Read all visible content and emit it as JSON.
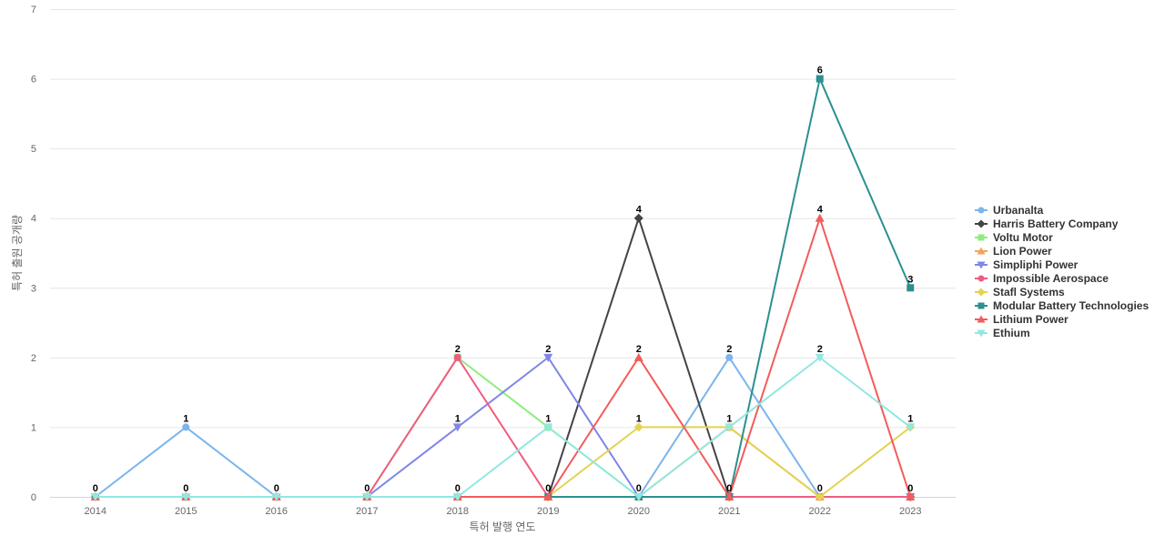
{
  "chart_data": {
    "type": "line",
    "title": "",
    "xlabel": "특허 발행 연도",
    "ylabel": "특허 출원 공개량",
    "categories": [
      "2014",
      "2015",
      "2016",
      "2017",
      "2018",
      "2019",
      "2020",
      "2021",
      "2022",
      "2023"
    ],
    "yticks": [
      "0",
      "1",
      "2",
      "3",
      "4",
      "5",
      "6",
      "7"
    ],
    "ylim": [
      0,
      7
    ],
    "grid": true,
    "legend_position": "right",
    "series": [
      {
        "name": "Urbanalta",
        "color": "#7cb5ec",
        "marker": "circle",
        "values": [
          0,
          1,
          0,
          0,
          0,
          0,
          0,
          2,
          0,
          0
        ]
      },
      {
        "name": "Harris Battery Company",
        "color": "#434348",
        "marker": "diamond",
        "values": [
          0,
          0,
          0,
          0,
          0,
          0,
          4,
          0,
          0,
          0
        ]
      },
      {
        "name": "Voltu Motor",
        "color": "#90ed7d",
        "marker": "square",
        "values": [
          0,
          0,
          0,
          0,
          2,
          1,
          0,
          0,
          0,
          0
        ]
      },
      {
        "name": "Lion Power",
        "color": "#f7a35c",
        "marker": "triangle",
        "values": [
          0,
          0,
          0,
          0,
          0,
          0,
          0,
          1,
          0,
          0
        ]
      },
      {
        "name": "Simpliphi Power",
        "color": "#8085e9",
        "marker": "triangle-down",
        "values": [
          0,
          0,
          0,
          0,
          1,
          2,
          0,
          0,
          0,
          0
        ]
      },
      {
        "name": "Impossible Aerospace",
        "color": "#f15c80",
        "marker": "circle",
        "values": [
          0,
          0,
          0,
          0,
          2,
          0,
          0,
          0,
          0,
          0
        ]
      },
      {
        "name": "Stafl Systems",
        "color": "#e4d354",
        "marker": "diamond",
        "values": [
          0,
          0,
          0,
          0,
          0,
          0,
          1,
          1,
          0,
          1
        ]
      },
      {
        "name": "Modular Battery Technologies",
        "color": "#2b908f",
        "marker": "square",
        "values": [
          0,
          0,
          0,
          0,
          0,
          0,
          0,
          0,
          6,
          3
        ]
      },
      {
        "name": "Lithium Power",
        "color": "#f45b5b",
        "marker": "triangle",
        "values": [
          0,
          0,
          0,
          0,
          0,
          0,
          2,
          0,
          4,
          0
        ]
      },
      {
        "name": "Ethium",
        "color": "#91e8e1",
        "marker": "triangle-down",
        "values": [
          0,
          0,
          0,
          0,
          0,
          1,
          0,
          1,
          2,
          1
        ]
      }
    ],
    "data_labels": [
      {
        "x": "2014",
        "text": "0"
      },
      {
        "x": "2015",
        "text": "1"
      },
      {
        "x": "2015",
        "text": "0"
      },
      {
        "x": "2016",
        "text": "0"
      },
      {
        "x": "2017",
        "text": "0"
      },
      {
        "x": "2018",
        "text": "2"
      },
      {
        "x": "2018",
        "text": "1"
      },
      {
        "x": "2018",
        "text": "0"
      },
      {
        "x": "2019",
        "text": "2"
      },
      {
        "x": "2019",
        "text": "1"
      },
      {
        "x": "2019",
        "text": "0"
      },
      {
        "x": "2020",
        "text": "4"
      },
      {
        "x": "2020",
        "text": "2"
      },
      {
        "x": "2020",
        "text": "1"
      },
      {
        "x": "2020",
        "text": "0"
      },
      {
        "x": "2021",
        "text": "2"
      },
      {
        "x": "2021",
        "text": "1"
      },
      {
        "x": "2021",
        "text": "0"
      },
      {
        "x": "2022",
        "text": "6"
      },
      {
        "x": "2022",
        "text": "4"
      },
      {
        "x": "2022",
        "text": "2"
      },
      {
        "x": "2022",
        "text": "0"
      },
      {
        "x": "2023",
        "text": "3"
      },
      {
        "x": "2023",
        "text": "1"
      },
      {
        "x": "2023",
        "text": "0"
      }
    ]
  }
}
